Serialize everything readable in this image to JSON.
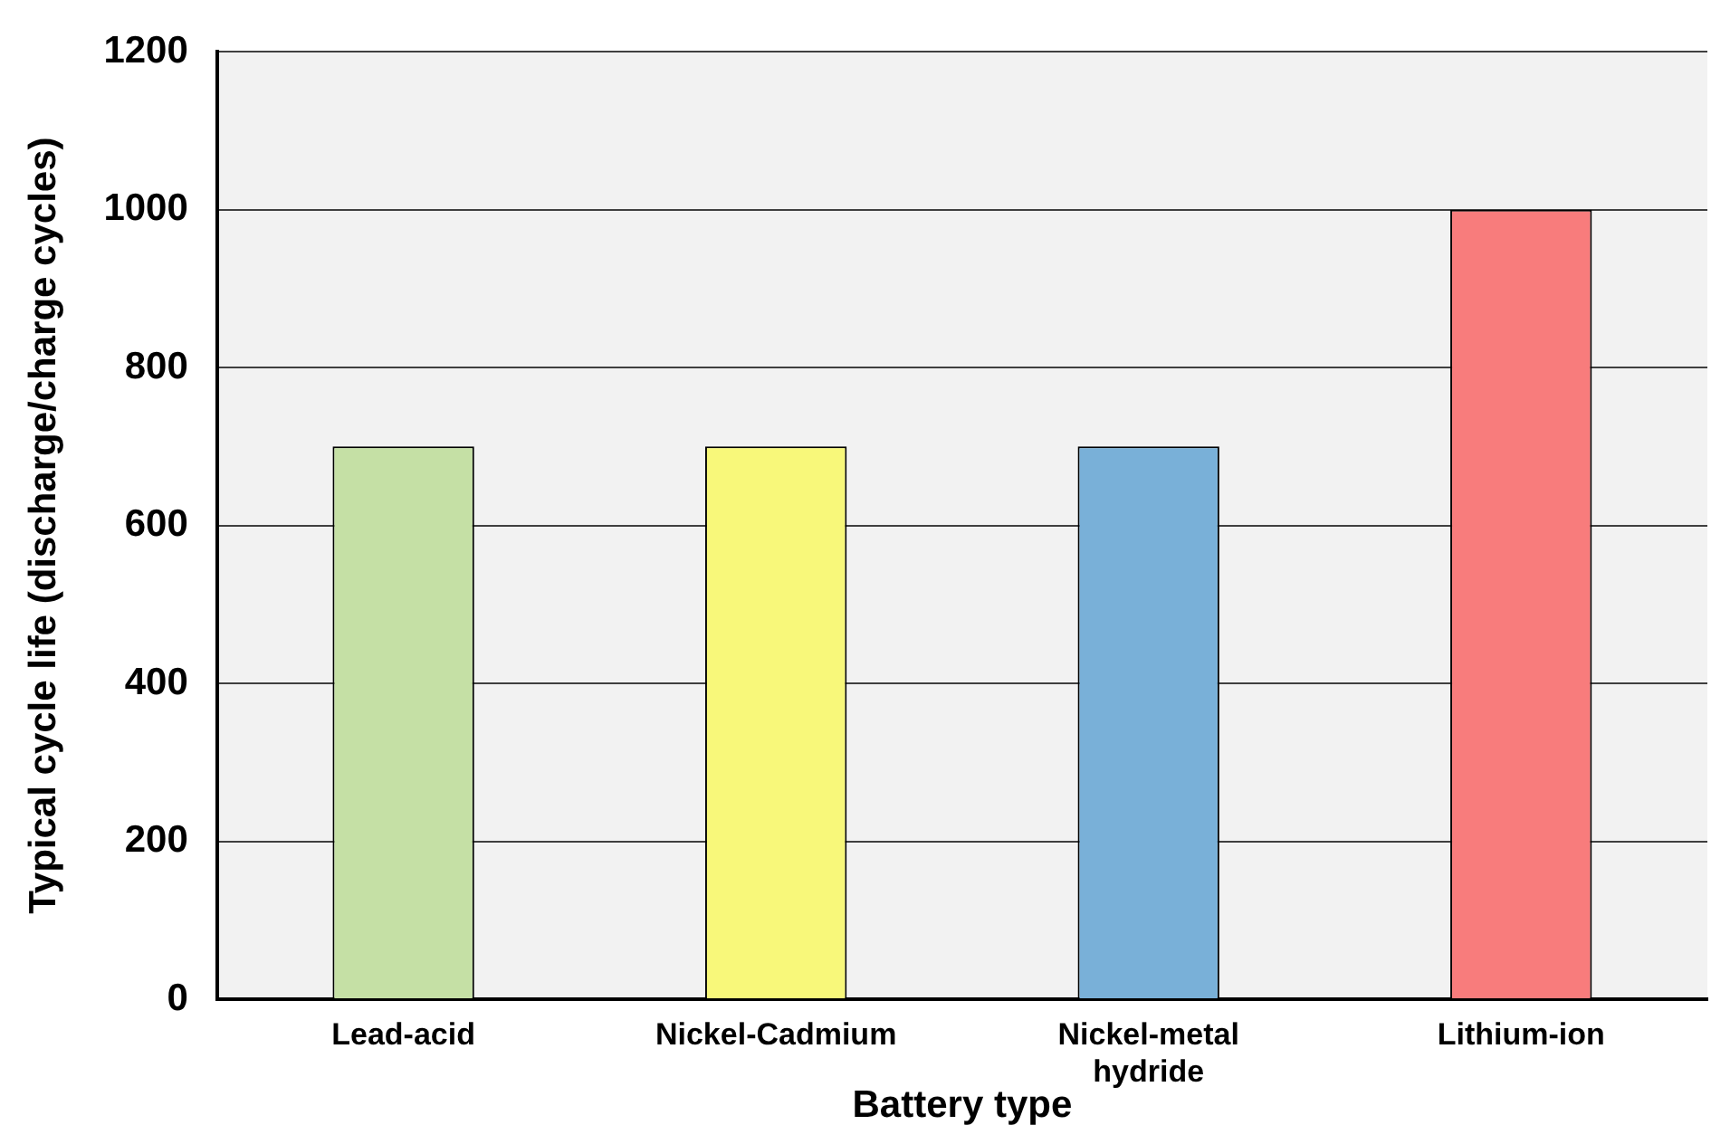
{
  "chart_data": {
    "type": "bar",
    "xlabel": "Battery type",
    "ylabel": "Typical cycle life (discharge/charge cycles)",
    "categories": [
      "Lead-acid",
      "Nickel-Cadmium",
      "Nickel-metal hydride",
      "Lithium-ion"
    ],
    "values": [
      700,
      700,
      700,
      1000
    ],
    "colors": [
      "#c5e0a5",
      "#f8f87a",
      "#79b0d8",
      "#f87c7c"
    ],
    "ylim": [
      0,
      1200
    ],
    "yticks": [
      0,
      200,
      400,
      600,
      800,
      1000,
      1200
    ],
    "grid": "y",
    "legend": false
  }
}
